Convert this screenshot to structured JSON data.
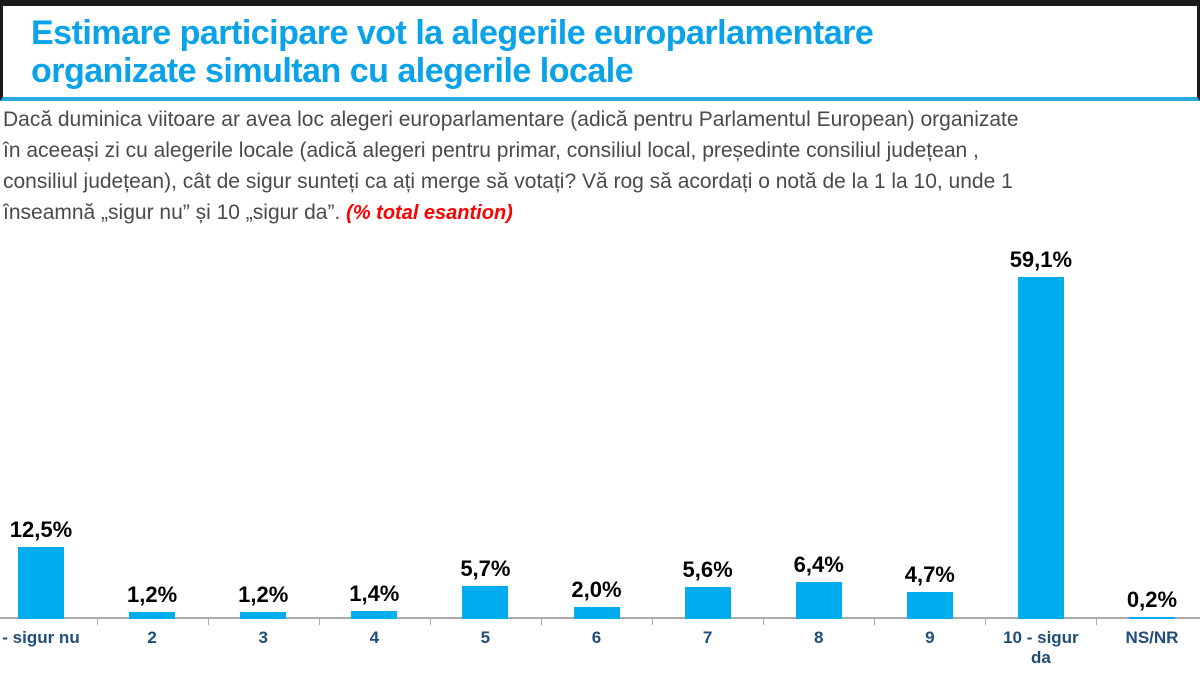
{
  "header": {
    "title_line1": "Estimare participare vot la alegerile europarlamentare",
    "title_line2": "organizate simultan cu alegerile locale"
  },
  "question": {
    "lines": [
      "Dacă duminica viitoare ar avea loc alegeri europarlamentare (adică pentru Parlamentul European) organizate",
      "în aceeași zi cu alegerile locale (adică alegeri pentru primar, consiliul local, președinte consiliul județean ,",
      "consiliul județean), cât de sigur sunteți ca ați merge să votați? Vă rog să acordați o notă de la 1 la 10, unde 1",
      "înseamnă „sigur nu” și 10  „sigur da”."
    ],
    "note": "(% total esantion)"
  },
  "colors": {
    "bar_blue": "#00aeef",
    "title_blue": "#0aa2e8",
    "divider_blue": "#29abe2",
    "top_bar_black": "#1b1b1b",
    "note_red": "#ff0000",
    "category_navy": "#1f4e79",
    "question_gray": "#4a4a4a",
    "axis_gray": "#ababab"
  },
  "chart_data": {
    "type": "bar",
    "title": "",
    "xlabel": "",
    "ylabel": "",
    "unit": "%",
    "ylim": [
      0,
      62
    ],
    "grid": false,
    "legend": false,
    "categories": [
      "- sigur nu",
      "2",
      "3",
      "4",
      "5",
      "6",
      "7",
      "8",
      "9",
      "10 - sigur da",
      "NS/NR"
    ],
    "values": [
      12.5,
      1.2,
      1.2,
      1.4,
      5.7,
      2.0,
      5.6,
      6.4,
      4.7,
      59.1,
      0.2
    ],
    "value_labels": [
      "12,5%",
      "1,2%",
      "1,2%",
      "1,4%",
      "5,7%",
      "2,0%",
      "5,6%",
      "6,4%",
      "4,7%",
      "59,1%",
      "0,2%"
    ]
  }
}
